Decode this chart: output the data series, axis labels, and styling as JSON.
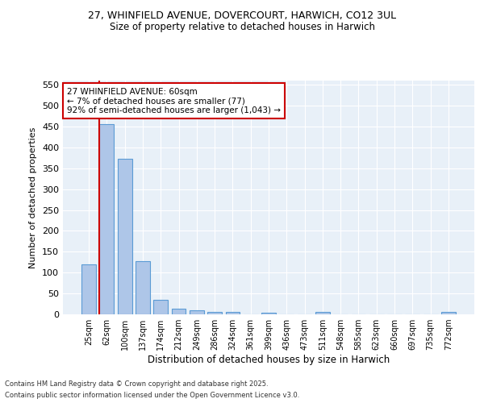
{
  "title_line1": "27, WHINFIELD AVENUE, DOVERCOURT, HARWICH, CO12 3UL",
  "title_line2": "Size of property relative to detached houses in Harwich",
  "xlabel": "Distribution of detached houses by size in Harwich",
  "ylabel": "Number of detached properties",
  "categories": [
    "25sqm",
    "62sqm",
    "100sqm",
    "137sqm",
    "174sqm",
    "212sqm",
    "249sqm",
    "286sqm",
    "324sqm",
    "361sqm",
    "399sqm",
    "436sqm",
    "473sqm",
    "511sqm",
    "548sqm",
    "585sqm",
    "623sqm",
    "660sqm",
    "697sqm",
    "735sqm",
    "772sqm"
  ],
  "values": [
    120,
    455,
    373,
    128,
    35,
    14,
    9,
    5,
    6,
    0,
    3,
    0,
    0,
    5,
    0,
    0,
    0,
    0,
    0,
    0,
    5
  ],
  "bar_color": "#aec6e8",
  "bar_edgecolor": "#5b9bd5",
  "vline_color": "#cc0000",
  "vline_x": 0.6,
  "annotation_box_text": "27 WHINFIELD AVENUE: 60sqm\n← 7% of detached houses are smaller (77)\n92% of semi-detached houses are larger (1,043) →",
  "annotation_box_color": "#cc0000",
  "ylim": [
    0,
    560
  ],
  "yticks": [
    0,
    50,
    100,
    150,
    200,
    250,
    300,
    350,
    400,
    450,
    500,
    550
  ],
  "bg_color": "#e8f0f8",
  "footer_line1": "Contains HM Land Registry data © Crown copyright and database right 2025.",
  "footer_line2": "Contains public sector information licensed under the Open Government Licence v3.0."
}
